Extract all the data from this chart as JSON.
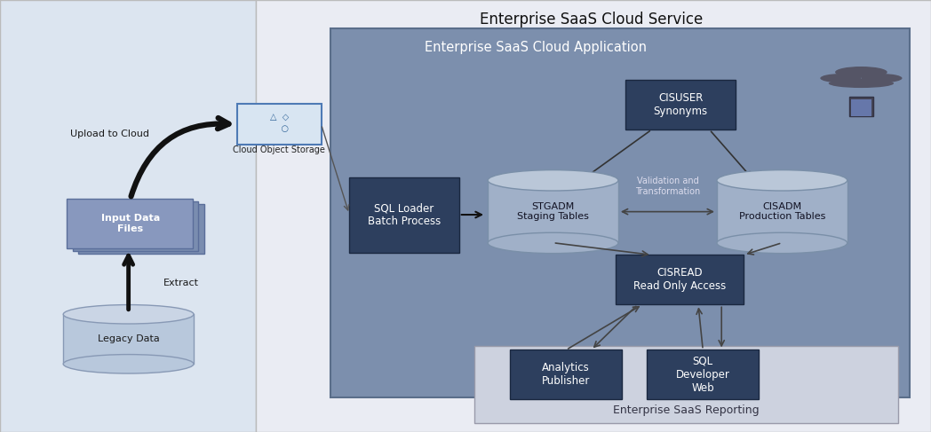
{
  "title_cloud_service": "Enterprise SaaS Cloud Service",
  "title_cloud_app": "Enterprise SaaS Cloud Application",
  "title_reporting": "Enterprise SaaS Reporting",
  "bg_outer": "#f0f4f8",
  "bg_white": "#ffffff",
  "bg_left_panel": "#dce4ef",
  "bg_cloud_service": "#eaecf2",
  "bg_cloud_app": "#7b8fad",
  "bg_reporting": "#cdd2df",
  "color_dark_box": "#2d3f5e",
  "color_cylinder_body": "#a0b0c8",
  "color_cylinder_top": "#bac7d8",
  "color_cylinder_edge": "#7a8fa8",
  "color_input_files_back": "#7a8db0",
  "color_input_files_front": "#8898be",
  "color_legacy_body": "#b8c8dc",
  "color_legacy_top": "#cad5e5",
  "color_cloud_storage_bg": "#d8e5f2",
  "color_cloud_storage_border": "#4e7ab5",
  "color_arrow_thick": "#1a1a1a",
  "color_arrow_thin": "#444444",
  "text_dark": "#1a1a1a",
  "text_white": "#ffffff",
  "text_gray": "#333344"
}
